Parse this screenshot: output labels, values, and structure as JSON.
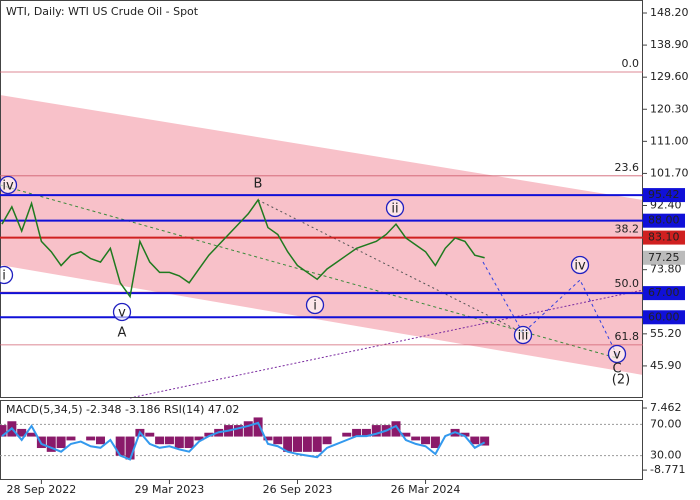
{
  "chart_data": {
    "type": "line",
    "title": "WTI, Daily:  WTI US Crude Oil - Spot",
    "categories": [
      null,
      null,
      null,
      null,
      "28 Sep 2022",
      null,
      null,
      null,
      null,
      null,
      null,
      null,
      null,
      null,
      null,
      null,
      null,
      "29 Mar 2023",
      null,
      null,
      null,
      null,
      null,
      null,
      null,
      null,
      null,
      null,
      null,
      null,
      "26 Sep 2023",
      null,
      null,
      null,
      null,
      null,
      null,
      null,
      null,
      null,
      null,
      null,
      null,
      "26 Mar 2024",
      null,
      null,
      null,
      null,
      null,
      null
    ],
    "series": [
      {
        "color": "#1f7a1f",
        "values": [
          87,
          92,
          85,
          93,
          82,
          79,
          75,
          78,
          79,
          77,
          76,
          80,
          70,
          66,
          82,
          76,
          73,
          73,
          72,
          70,
          74,
          78,
          81,
          84,
          87,
          90,
          94,
          86,
          84,
          79,
          75,
          73,
          71,
          74,
          76,
          78,
          80,
          81,
          82,
          84,
          87,
          83,
          81,
          79,
          75,
          80,
          83,
          82,
          78,
          77.25
        ]
      }
    ],
    "ylim": [
      36.6,
      151.97
    ],
    "yticks": [
      {
        "value": 148.2,
        "label": "148.20"
      },
      {
        "value": 138.9,
        "label": "138.90"
      },
      {
        "value": 129.6,
        "label": "129.60"
      },
      {
        "value": 120.3,
        "label": "120.30"
      },
      {
        "value": 111,
        "label": "111.00"
      },
      {
        "value": 101.7,
        "label": "101.70"
      },
      {
        "value": 92.4,
        "label": "92.40"
      },
      {
        "value": 73.8,
        "label": "73.80"
      },
      {
        "value": 55.2,
        "label": "55.20"
      },
      {
        "value": 45.9,
        "label": "45.90"
      }
    ],
    "levels": [
      {
        "value": 95.42,
        "label": "95.42",
        "color": "#1010d8"
      },
      {
        "value": 88,
        "label": "88.00",
        "color": "#1010d8"
      },
      {
        "value": 83.1,
        "label": "83.10",
        "color": "#d02020"
      },
      {
        "value": 67,
        "label": "67.00",
        "color": "#1010d8"
      },
      {
        "value": 60,
        "label": "60.00",
        "color": "#1010d8"
      }
    ],
    "fib": [
      {
        "value": 131.1,
        "label": "0.0"
      },
      {
        "value": 101,
        "label": "23.6"
      },
      {
        "value": 83.1,
        "label": "38.2"
      },
      {
        "value": 67.3,
        "label": "50.0"
      },
      {
        "value": 52,
        "label": "61.8"
      }
    ],
    "waves": [
      "iv",
      "v",
      "A",
      "B",
      "ii",
      "i",
      "iii",
      "iv",
      "v",
      "C",
      "(2)",
      "i"
    ],
    "indicator": {
      "label": "MACD(5,34,5) -2.348 -3.186 RSI(14) 47.02",
      "macd": [
        3,
        4,
        2,
        1,
        -3,
        -4,
        -3,
        -1,
        0,
        -1,
        -2,
        0,
        -5,
        -6,
        2,
        1,
        -2,
        -2,
        -3,
        -3,
        -1,
        1,
        2,
        3,
        3,
        4,
        5,
        -1,
        -2,
        -4,
        -4,
        -4,
        -4,
        -2,
        0,
        1,
        2,
        2,
        3,
        3,
        4,
        1,
        -1,
        -2,
        -3,
        0,
        2,
        1,
        -2,
        -2.348
      ],
      "macd_color": "#8a1a6a",
      "macdlim": [
        -11.1,
        9.3
      ],
      "macdticks": [
        7.462,
        -8.771
      ],
      "rsi": [
        55,
        65,
        50,
        68,
        45,
        40,
        35,
        45,
        48,
        42,
        40,
        50,
        30,
        25,
        60,
        45,
        40,
        42,
        38,
        35,
        48,
        55,
        60,
        62,
        65,
        68,
        72,
        45,
        42,
        35,
        32,
        30,
        28,
        40,
        45,
        50,
        55,
        55,
        58,
        62,
        68,
        50,
        45,
        42,
        32,
        55,
        60,
        55,
        40,
        47.02
      ],
      "rsi_color": "#3399ee",
      "rsilim": [
        0,
        100
      ],
      "rsiticks": [
        {
          "value": 70,
          "label": "70.00"
        },
        {
          "value": 30,
          "label": "30.00"
        }
      ]
    }
  }
}
